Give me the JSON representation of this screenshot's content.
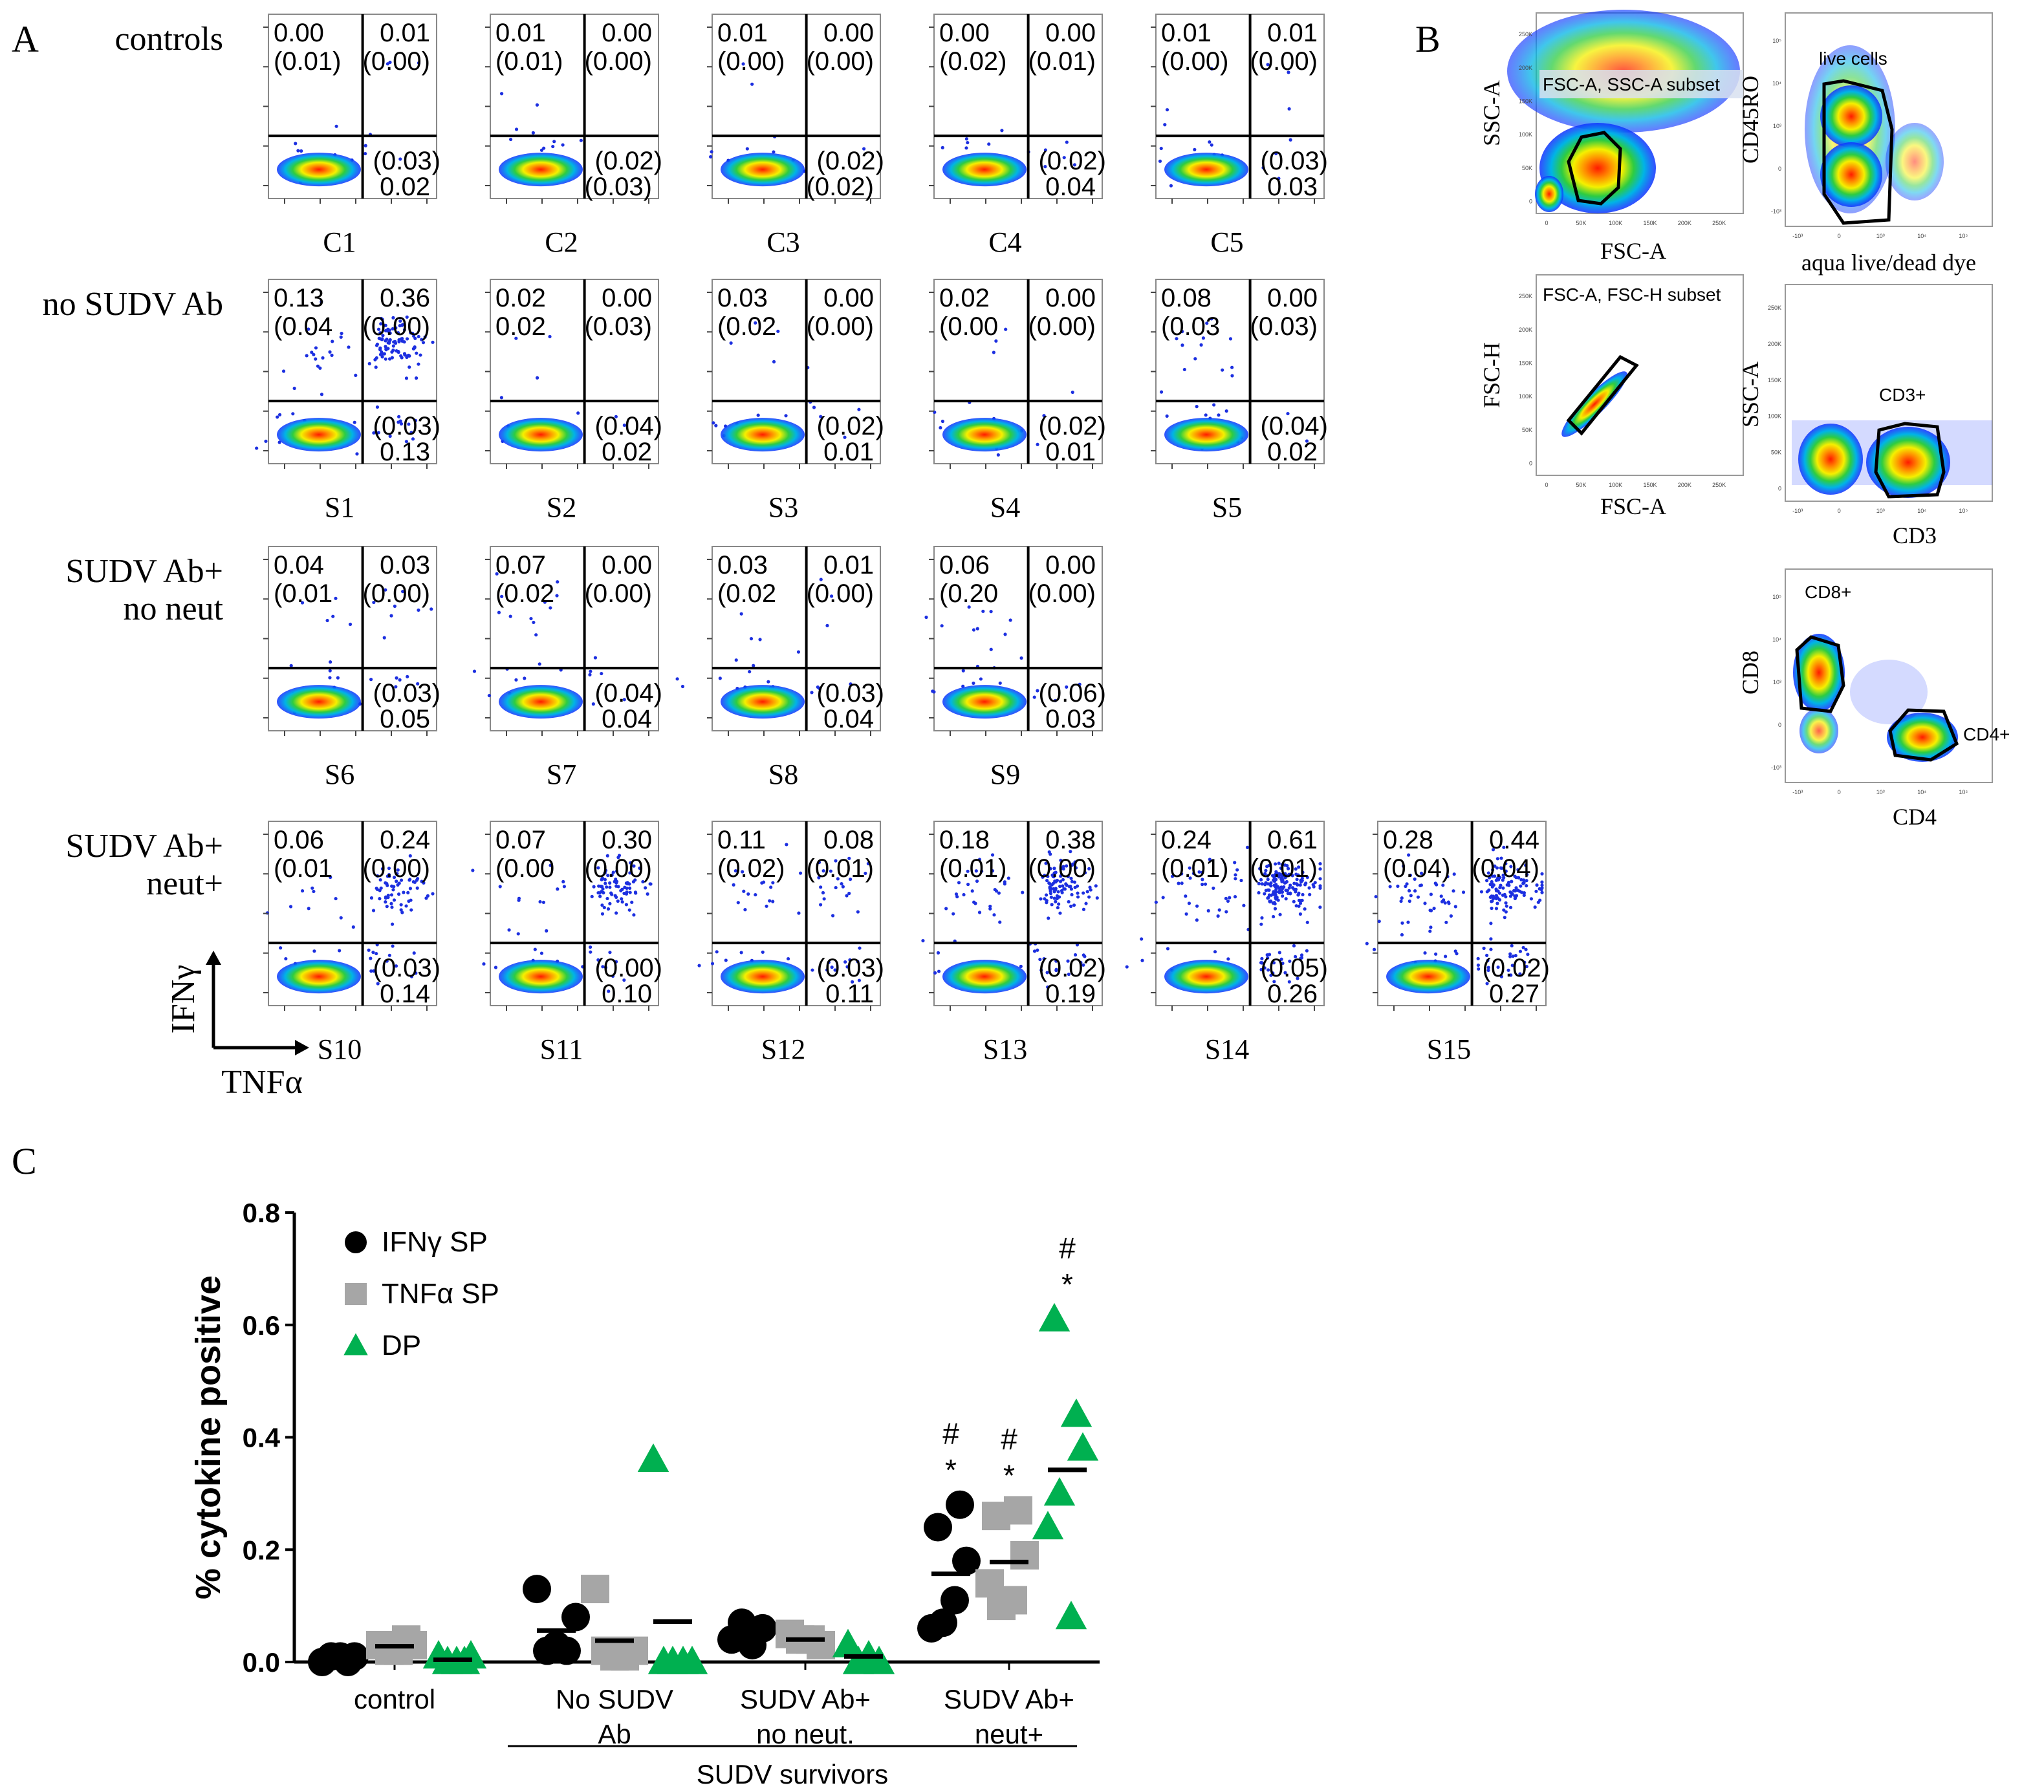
{
  "panel_a": {
    "label": "A",
    "rows": [
      {
        "label": [
          "controls"
        ],
        "samples": [
          {
            "name": "C1",
            "q": [
              "0.00",
              "(0.01)",
              "0.01",
              "(0.00)",
              "(0.03)",
              "0.02"
            ]
          },
          {
            "name": "C2",
            "q": [
              "0.01",
              "(0.01)",
              "0.00",
              "(0.00)",
              "(0.02)",
              "(0.03)"
            ]
          },
          {
            "name": "C3",
            "q": [
              "0.01",
              "(0.00)",
              "0.00",
              "(0.00)",
              "(0.02)",
              "(0.02)"
            ]
          },
          {
            "name": "C4",
            "q": [
              "0.00",
              "(0.02)",
              "0.00",
              "(0.01)",
              "(0.02)",
              "0.04"
            ]
          },
          {
            "name": "C5",
            "q": [
              "0.01",
              "(0.00)",
              "0.01",
              "(0.00)",
              "(0.03)",
              "0.03"
            ]
          }
        ]
      },
      {
        "label": [
          "no SUDV Ab"
        ],
        "samples": [
          {
            "name": "S1",
            "q": [
              "0.13",
              "(0.04",
              "0.36",
              "(0.00)",
              "(0.03)",
              "0.13"
            ]
          },
          {
            "name": "S2",
            "q": [
              "0.02",
              "0.02",
              "0.00",
              "(0.03)",
              "(0.04)",
              "0.02"
            ]
          },
          {
            "name": "S3",
            "q": [
              "0.03",
              "(0.02",
              "0.00",
              "(0.00)",
              "(0.02)",
              "0.01"
            ]
          },
          {
            "name": "S4",
            "q": [
              "0.02",
              "(0.00",
              "0.00",
              "(0.00)",
              "(0.02)",
              "0.01"
            ]
          },
          {
            "name": "S5",
            "q": [
              "0.08",
              "(0.03",
              "0.00",
              "(0.03)",
              "(0.04)",
              "0.02"
            ]
          }
        ]
      },
      {
        "label": [
          "SUDV Ab+",
          "no neut"
        ],
        "samples": [
          {
            "name": "S6",
            "q": [
              "0.04",
              "(0.01",
              "0.03",
              "(0.00)",
              "(0.03)",
              "0.05"
            ]
          },
          {
            "name": "S7",
            "q": [
              "0.07",
              "(0.02",
              "0.00",
              "(0.00)",
              "(0.04)",
              "0.04"
            ]
          },
          {
            "name": "S8",
            "q": [
              "0.03",
              "(0.02",
              "0.01",
              "(0.00)",
              "(0.03)",
              "0.04"
            ]
          },
          {
            "name": "S9",
            "q": [
              "0.06",
              "(0.20",
              "0.00",
              "(0.00)",
              "(0.06)",
              "0.03"
            ]
          }
        ]
      },
      {
        "label": [
          "SUDV Ab+",
          "neut+"
        ],
        "samples": [
          {
            "name": "S10",
            "q": [
              "0.06",
              "(0.01",
              "0.24",
              "(0.00)",
              "(0.03)",
              "0.14"
            ]
          },
          {
            "name": "S11",
            "q": [
              "0.07",
              "(0.00",
              "0.30",
              "(0.00)",
              "(0.00)",
              "0.10"
            ]
          },
          {
            "name": "S12",
            "q": [
              "0.11",
              "(0.02)",
              "0.08",
              "(0.01)",
              "(0.03)",
              "0.11"
            ]
          },
          {
            "name": "S13",
            "q": [
              "0.18",
              "(0.01)",
              "0.38",
              "(0.00)",
              "(0.02)",
              "0.19"
            ]
          },
          {
            "name": "S14",
            "q": [
              "0.24",
              "(0.01)",
              "0.61",
              "(0.01)",
              "(0.05)",
              "0.26"
            ]
          },
          {
            "name": "S15",
            "q": [
              "0.28",
              "(0.04)",
              "0.44",
              "(0.04)",
              "(0.02)",
              "0.27"
            ]
          }
        ]
      }
    ],
    "y_axis_label": "IFNγ",
    "x_axis_label": "TNFα"
  },
  "panel_b": {
    "label": "B",
    "plots": [
      {
        "xlabel": "FSC-A",
        "ylabel": "SSC-A",
        "gate": "FSC-A, SSC-A subset"
      },
      {
        "xlabel": "aqua live/dead dye",
        "ylabel": "CD45RO",
        "gate": "live cells"
      },
      {
        "xlabel": "FSC-A",
        "ylabel": "FSC-H",
        "gate": "FSC-A, FSC-H subset"
      },
      {
        "xlabel": "CD3",
        "ylabel": "SSC-A",
        "gate": "CD3+"
      },
      {
        "xlabel": "CD4",
        "ylabel": "CD8",
        "gate": "CD8+",
        "gate2": "CD4+"
      }
    ],
    "fsc_ticks": [
      "0",
      "50K",
      "100K",
      "150K",
      "200K",
      "250K"
    ],
    "log_ticks": [
      "-10³",
      "0",
      "10³",
      "10⁴",
      "10⁵"
    ]
  },
  "chart_data": {
    "type": "scatter",
    "panel_label": "C",
    "ylabel": "% cytokine positive",
    "ylim": [
      0,
      0.8
    ],
    "yticks": [
      "0.0",
      "0.2",
      "0.4",
      "0.6",
      "0.8"
    ],
    "groups": [
      {
        "label": [
          "control"
        ]
      },
      {
        "label": [
          "No SUDV",
          "Ab"
        ]
      },
      {
        "label": [
          "SUDV Ab+",
          "no neut."
        ]
      },
      {
        "label": [
          "SUDV Ab+",
          "neut+"
        ]
      }
    ],
    "bracket_label": "SUDV survivors",
    "legend_position": "top-left",
    "series": [
      {
        "name": "IFNγ SP",
        "marker": "circle",
        "color": "#000000",
        "values": [
          [
            0.0,
            0.01,
            0.01,
            0.0,
            0.01
          ],
          [
            0.13,
            0.02,
            0.03,
            0.02,
            0.08
          ],
          [
            0.04,
            0.07,
            0.03,
            0.06
          ],
          [
            0.06,
            0.07,
            0.11,
            0.18,
            0.24,
            0.28
          ]
        ],
        "means": [
          0.006,
          0.056,
          0.05,
          0.157
        ]
      },
      {
        "name": "TNFα SP",
        "marker": "square",
        "color": "#a6a6a6",
        "values": [
          [
            0.03,
            0.02,
            0.02,
            0.04,
            0.03
          ],
          [
            0.13,
            0.02,
            0.01,
            0.01,
            0.02
          ],
          [
            0.05,
            0.04,
            0.04,
            0.03
          ],
          [
            0.14,
            0.1,
            0.11,
            0.19,
            0.26,
            0.27
          ]
        ],
        "means": [
          0.028,
          0.038,
          0.04,
          0.178
        ]
      },
      {
        "name": "DP",
        "marker": "triangle",
        "color": "#00b050",
        "values": [
          [
            0.01,
            0.0,
            0.0,
            0.0,
            0.01
          ],
          [
            0.36,
            0.0,
            0.0,
            0.0,
            0.0
          ],
          [
            0.03,
            0.0,
            0.01,
            0.0
          ],
          [
            0.24,
            0.3,
            0.08,
            0.38,
            0.61,
            0.44
          ]
        ],
        "means": [
          0.004,
          0.072,
          0.01,
          0.342
        ]
      }
    ],
    "annotations": [
      {
        "group": 3,
        "series": 0,
        "marks": [
          "#",
          "*"
        ]
      },
      {
        "group": 3,
        "series": 1,
        "marks": [
          "#",
          "*"
        ]
      },
      {
        "group": 3,
        "series": 2,
        "marks": [
          "#",
          "*"
        ]
      }
    ]
  }
}
